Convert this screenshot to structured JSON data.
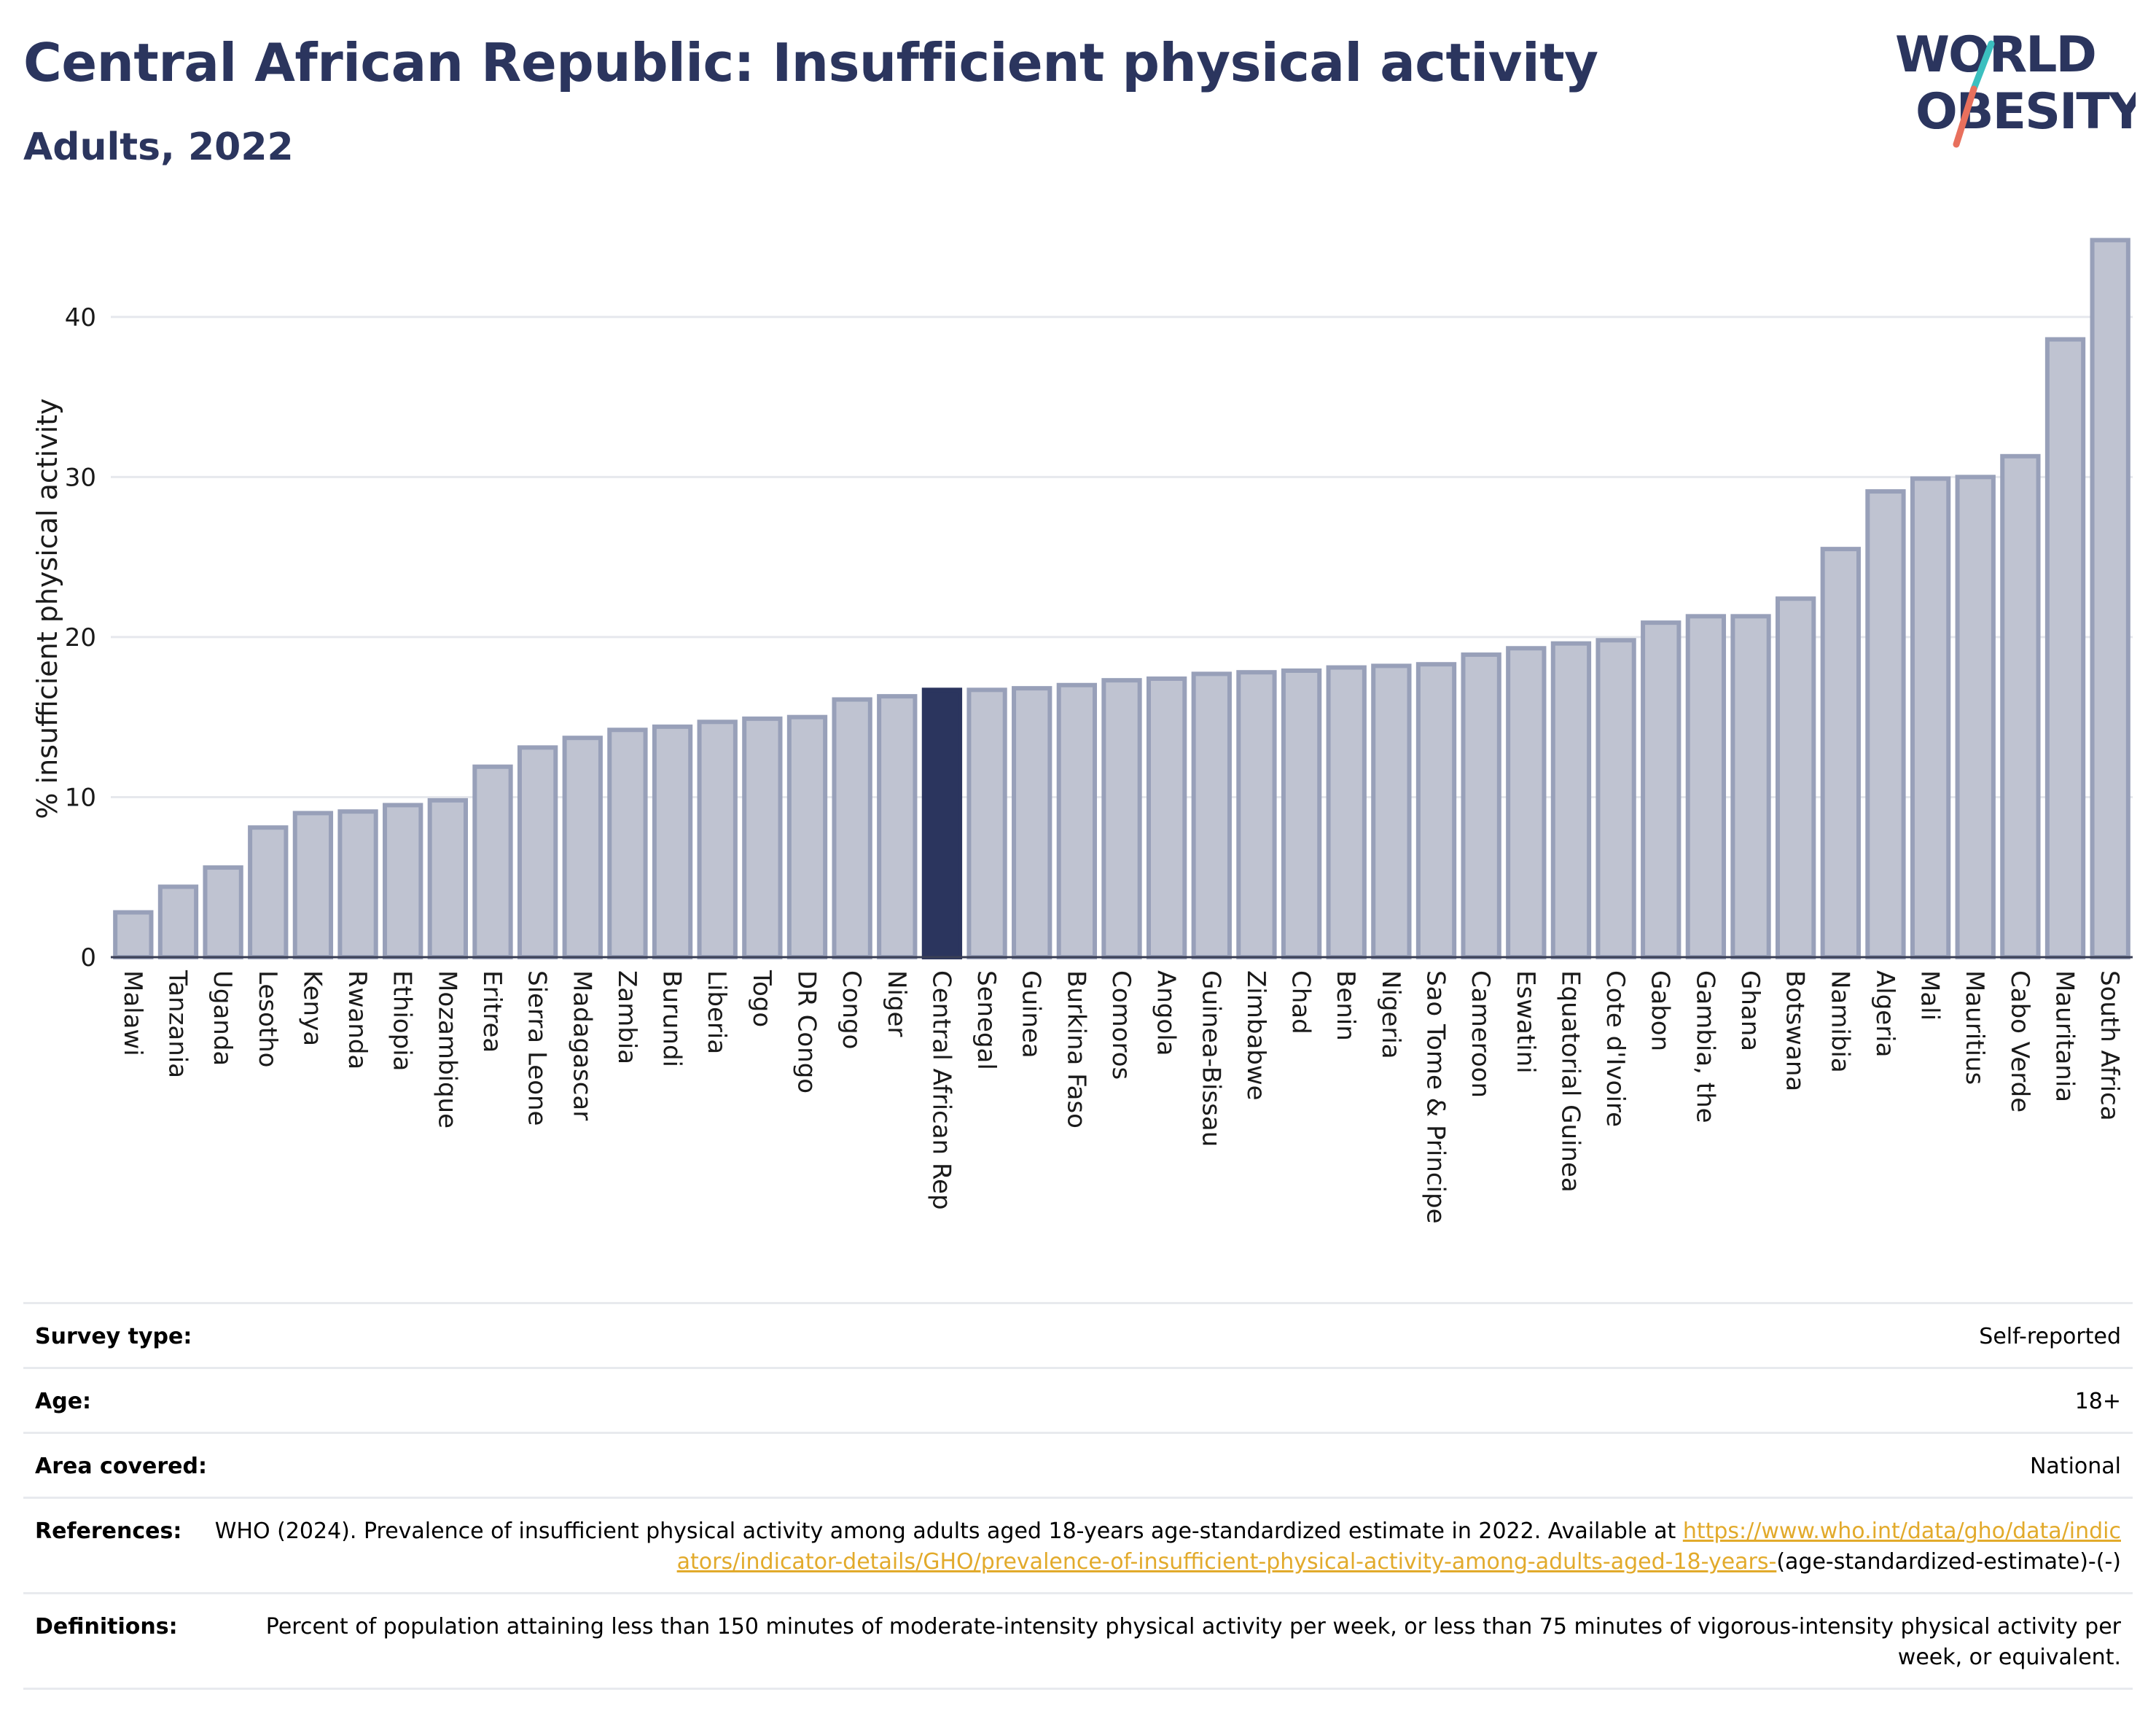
{
  "header": {
    "title": "Central African Republic: Insufficient physical activity",
    "subtitle": "Adults, 2022"
  },
  "logo": {
    "line1": "WORLD",
    "line2": "OBESITY",
    "accent_colors": [
      "#3bbfbf",
      "#e8705d"
    ],
    "text_color": "#2b355e"
  },
  "chart_data": {
    "type": "bar",
    "ylabel": "% insufficient physical activity",
    "xlabel": "",
    "ylim": [
      0,
      45
    ],
    "yticks": [
      0,
      10,
      20,
      30,
      40
    ],
    "grid": true,
    "highlight": "Central African Rep",
    "colors": {
      "default_fill": "#bfc3d1",
      "default_stroke": "#98a0b9",
      "highlight_fill": "#2b355e"
    },
    "categories": [
      "Malawi",
      "Tanzania",
      "Uganda",
      "Lesotho",
      "Kenya",
      "Rwanda",
      "Ethiopia",
      "Mozambique",
      "Eritrea",
      "Sierra Leone",
      "Madagascar",
      "Zambia",
      "Burundi",
      "Liberia",
      "Togo",
      "DR Congo",
      "Congo",
      "Niger",
      "Central African Rep",
      "Senegal",
      "Guinea",
      "Burkina Faso",
      "Comoros",
      "Angola",
      "Guinea-Bissau",
      "Zimbabwe",
      "Chad",
      "Benin",
      "Nigeria",
      "Sao Tome & Principe",
      "Cameroon",
      "Eswatini",
      "Equatorial Guinea",
      "Cote d'Ivoire",
      "Gabon",
      "Gambia, the",
      "Ghana",
      "Botswana",
      "Namibia",
      "Algeria",
      "Mali",
      "Mauritius",
      "Cabo Verde",
      "Mauritania",
      "South Africa"
    ],
    "values": [
      2.8,
      4.4,
      5.6,
      8.1,
      9.0,
      9.1,
      9.5,
      9.8,
      11.9,
      13.1,
      13.7,
      14.2,
      14.4,
      14.7,
      14.9,
      15.0,
      16.1,
      16.3,
      16.7,
      16.7,
      16.8,
      17.0,
      17.3,
      17.4,
      17.7,
      17.8,
      17.9,
      18.1,
      18.2,
      18.3,
      18.9,
      19.3,
      19.6,
      19.8,
      20.9,
      21.3,
      21.3,
      22.4,
      25.5,
      29.1,
      29.9,
      30.0,
      31.3,
      38.6,
      44.8
    ]
  },
  "info": {
    "survey_type_label": "Survey type:",
    "survey_type_value": "Self-reported",
    "age_label": "Age:",
    "age_value": "18+",
    "area_label": "Area covered:",
    "area_value": "National",
    "references_label": "References:",
    "references_text": "WHO (2024). Prevalence of insufficient physical activity among adults aged 18-years age-standardized estimate in 2022. Available at",
    "references_link": "https://www.who.int/data/gho/data/indicators/indicator-details/GHO/prevalence-of-insufficient-physical-activity-among-adults-aged-18-years-",
    "references_suffix": "(age-standardized-estimate)-(-)",
    "definitions_label": "Definitions:",
    "definitions_text": "Percent of population attaining less than 150 minutes of moderate-intensity physical activity per week, or less than 75 minutes of vigorous-intensity physical activity per week, or equivalent."
  }
}
